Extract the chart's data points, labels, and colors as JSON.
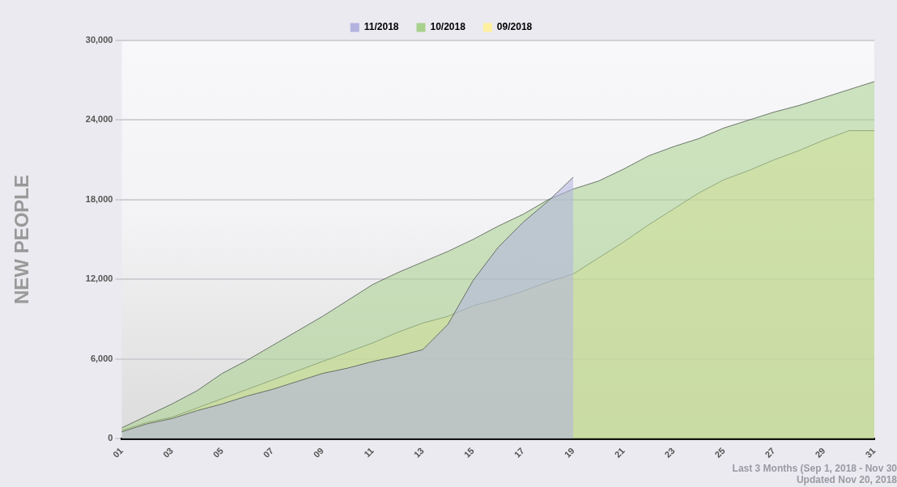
{
  "chart_data": {
    "type": "area",
    "ylabel": "NEW PEOPLE",
    "categories": [
      "01",
      null,
      "03",
      null,
      "05",
      null,
      "07",
      null,
      "09",
      null,
      "11",
      null,
      "13",
      null,
      "15",
      null,
      "17",
      null,
      "19",
      null,
      "21",
      null,
      "23",
      null,
      "25",
      null,
      "27",
      null,
      "29",
      null,
      "31"
    ],
    "series": [
      {
        "name": "11/2018",
        "color": "#b3b3e0",
        "values": [
          500,
          1100,
          1500,
          2100,
          2600,
          3200,
          3700,
          4300,
          4900,
          5300,
          5800,
          6200,
          6700,
          8600,
          11900,
          14400,
          16300,
          17900,
          19700,
          null,
          null,
          null,
          null,
          null,
          null,
          null,
          null,
          null,
          null,
          null,
          null
        ]
      },
      {
        "name": "10/2018",
        "color": "#a9d18e",
        "values": [
          800,
          1700,
          2600,
          3600,
          4900,
          5900,
          7000,
          8100,
          9200,
          10400,
          11600,
          12500,
          13300,
          14100,
          15000,
          16000,
          16900,
          18000,
          18800,
          19400,
          20300,
          21300,
          22000,
          22600,
          23400,
          24000,
          24600,
          25100,
          25700,
          26300,
          26900
        ]
      },
      {
        "name": "09/2018",
        "color": "#fff0a0",
        "values": [
          600,
          1200,
          1600,
          2300,
          3000,
          3700,
          4400,
          5100,
          5800,
          6500,
          7200,
          8000,
          8700,
          9200,
          10000,
          10500,
          11100,
          11800,
          12400,
          13600,
          14800,
          16100,
          17300,
          18500,
          19500,
          20200,
          21000,
          21700,
          22500,
          23200,
          23200
        ]
      }
    ],
    "ylim": [
      0,
      30000
    ],
    "yticks": [
      {
        "value": 0,
        "label": "0"
      },
      {
        "value": 6000,
        "label": "6,000"
      },
      {
        "value": 12000,
        "label": "12,000"
      },
      {
        "value": 18000,
        "label": "18,000"
      },
      {
        "value": 24000,
        "label": "24,000"
      },
      {
        "value": 30000,
        "label": "30,000"
      }
    ],
    "grid": "y",
    "legend": "top",
    "marker": "none",
    "line_style": "solid",
    "annotations": [
      "Last 3 Months (Sep 1, 2018 - Nov 30",
      "Updated Nov 20, 2018"
    ]
  }
}
